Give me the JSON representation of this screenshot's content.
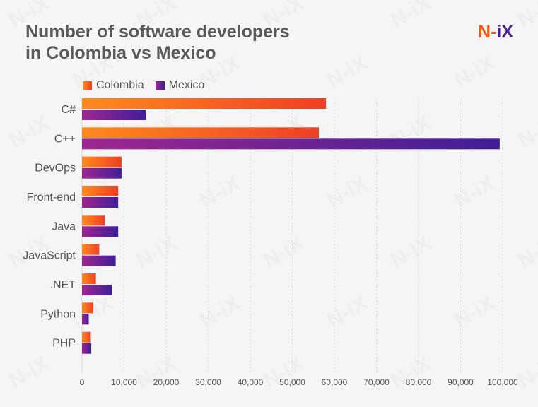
{
  "header": {
    "title_line1": "Number of software developers",
    "title_line2": "in Colombia vs Mexico",
    "logo_n": "N",
    "logo_dash": "-",
    "logo_ix": "iX"
  },
  "watermark": "N-iX",
  "colors": {
    "colombia_start": "#ff8a1c",
    "colombia_end": "#ef3f25",
    "mexico_start": "#a0268f",
    "mexico_end": "#3f1f98",
    "background": "#f5f5f5",
    "grid": "#d3d3d3",
    "text": "#555555"
  },
  "chart_data": {
    "type": "bar",
    "orientation": "horizontal",
    "categories": [
      "C#",
      "C++",
      "DevOps",
      "Front-end",
      "Java",
      "JavaScript",
      ".NET",
      "Python",
      "PHP"
    ],
    "series": [
      {
        "name": "Colombia",
        "values": [
          58000,
          56300,
          9400,
          8600,
          5400,
          4100,
          3300,
          2700,
          2100
        ]
      },
      {
        "name": "Mexico",
        "values": [
          15200,
          99300,
          9400,
          8600,
          8600,
          8000,
          7100,
          1600,
          2200
        ]
      }
    ],
    "xlim": [
      0,
      100000
    ],
    "xticks": [
      "0",
      "10,000",
      "20,000",
      "30,000",
      "40,000",
      "50,000",
      "60,000",
      "70,000",
      "80,000",
      "90,000",
      "100,000"
    ],
    "grid": true,
    "legend": "top-left",
    "title": "Number of software developers in Colombia vs Mexico",
    "xlabel": "",
    "ylabel": ""
  }
}
